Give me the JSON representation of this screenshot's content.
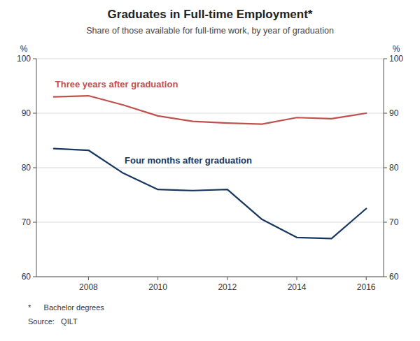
{
  "chart_data": {
    "type": "line",
    "title": "Graduates in Full-time Employment*",
    "subtitle": "Share of those available for full-time work, by year of graduation",
    "annotations": [
      "*      Bachelor degrees",
      "Source:   QILT"
    ],
    "y_label": "%",
    "y2_label": "%",
    "x": [
      2007,
      2008,
      2009,
      2010,
      2011,
      2012,
      2013,
      2014,
      2015,
      2016
    ],
    "series": [
      {
        "name": "Three years after graduation",
        "color": "#c0504d",
        "values": [
          93.0,
          93.2,
          91.5,
          89.5,
          88.5,
          88.2,
          88.0,
          89.2,
          89.0,
          90.0
        ]
      },
      {
        "name": "Four months after graduation",
        "color": "#17375e",
        "values": [
          83.5,
          83.2,
          79.0,
          76.0,
          75.8,
          76.0,
          70.5,
          67.2,
          67.0,
          72.5
        ]
      }
    ],
    "xlim": [
      2006.5,
      2016.5
    ],
    "xticks": [
      2008,
      2010,
      2012,
      2014,
      2016
    ],
    "ylim": [
      60,
      100
    ],
    "yticks": [
      60,
      70,
      80,
      90,
      100
    ],
    "y2lim": [
      60,
      100
    ],
    "y2ticks": [
      60,
      70,
      80,
      90,
      100
    ],
    "grid": true
  }
}
